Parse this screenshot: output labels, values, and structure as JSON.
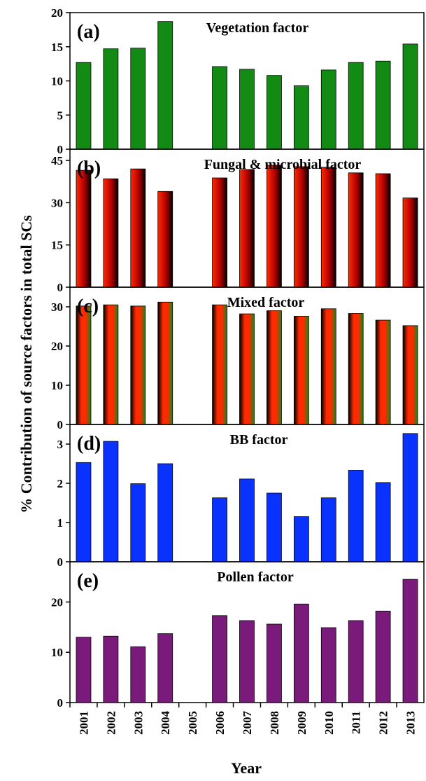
{
  "ylabel": "% Contribution of source factors in total SCs",
  "xlabel": "Year",
  "years": [
    "2001",
    "2002",
    "2003",
    "2004",
    "2005",
    "2006",
    "2007",
    "2008",
    "2009",
    "2010",
    "2011",
    "2012",
    "2013"
  ],
  "chart_data": [
    {
      "type": "bar",
      "panel": "(a)",
      "title": "Vegetation factor",
      "categories": [
        "2001",
        "2002",
        "2003",
        "2004",
        "2005",
        "2006",
        "2007",
        "2008",
        "2009",
        "2010",
        "2011",
        "2012",
        "2013"
      ],
      "values": [
        12.7,
        14.7,
        14.8,
        18.7,
        null,
        12.1,
        11.7,
        10.8,
        9.3,
        11.6,
        12.7,
        12.9,
        15.4
      ],
      "ylim": [
        0,
        20
      ],
      "yticks": [
        0,
        5,
        10,
        15,
        20
      ],
      "color": "#138a13"
    },
    {
      "type": "bar",
      "panel": "(b)",
      "title": "Fungal & microbial factor",
      "categories": [
        "2001",
        "2002",
        "2003",
        "2004",
        "2005",
        "2006",
        "2007",
        "2008",
        "2009",
        "2010",
        "2011",
        "2012",
        "2013"
      ],
      "values": [
        41.5,
        38.5,
        42.0,
        34.0,
        null,
        38.8,
        41.8,
        43.3,
        42.8,
        42.6,
        40.6,
        40.3,
        31.7
      ],
      "ylim": [
        0,
        49
      ],
      "yticks": [
        0,
        15,
        30,
        45
      ],
      "color": "#ff2a00",
      "color2": "#000000"
    },
    {
      "type": "bar",
      "panel": "(c)",
      "title": "Mixed factor",
      "categories": [
        "2001",
        "2002",
        "2003",
        "2004",
        "2005",
        "2006",
        "2007",
        "2008",
        "2009",
        "2010",
        "2011",
        "2012",
        "2013"
      ],
      "values": [
        30.2,
        30.5,
        30.2,
        31.2,
        null,
        30.5,
        28.2,
        29.0,
        27.6,
        29.5,
        28.3,
        26.6,
        25.2
      ],
      "ylim": [
        0,
        35
      ],
      "yticks": [
        0,
        10,
        20,
        30
      ],
      "color": "#ff2a00",
      "color2": "#000000",
      "color3": "#138a13"
    },
    {
      "type": "bar",
      "panel": "(d)",
      "title": "BB factor",
      "categories": [
        "2001",
        "2002",
        "2003",
        "2004",
        "2005",
        "2006",
        "2007",
        "2008",
        "2009",
        "2010",
        "2011",
        "2012",
        "2013"
      ],
      "values": [
        2.53,
        3.07,
        1.99,
        2.5,
        null,
        1.63,
        2.11,
        1.75,
        1.15,
        1.63,
        2.33,
        2.02,
        3.27
      ],
      "ylim": [
        0,
        3.5
      ],
      "yticks": [
        0,
        1,
        2,
        3
      ],
      "color": "#0a32ff"
    },
    {
      "type": "bar",
      "panel": "(e)",
      "title": "Pollen factor",
      "categories": [
        "2001",
        "2002",
        "2003",
        "2004",
        "2005",
        "2006",
        "2007",
        "2008",
        "2009",
        "2010",
        "2011",
        "2012",
        "2013"
      ],
      "values": [
        13.0,
        13.2,
        11.1,
        13.7,
        null,
        17.3,
        16.3,
        15.6,
        19.6,
        14.9,
        16.3,
        18.2,
        24.5
      ],
      "ylim": [
        0,
        28
      ],
      "yticks": [
        0,
        10,
        20
      ],
      "color": "#7a1a7a"
    }
  ]
}
